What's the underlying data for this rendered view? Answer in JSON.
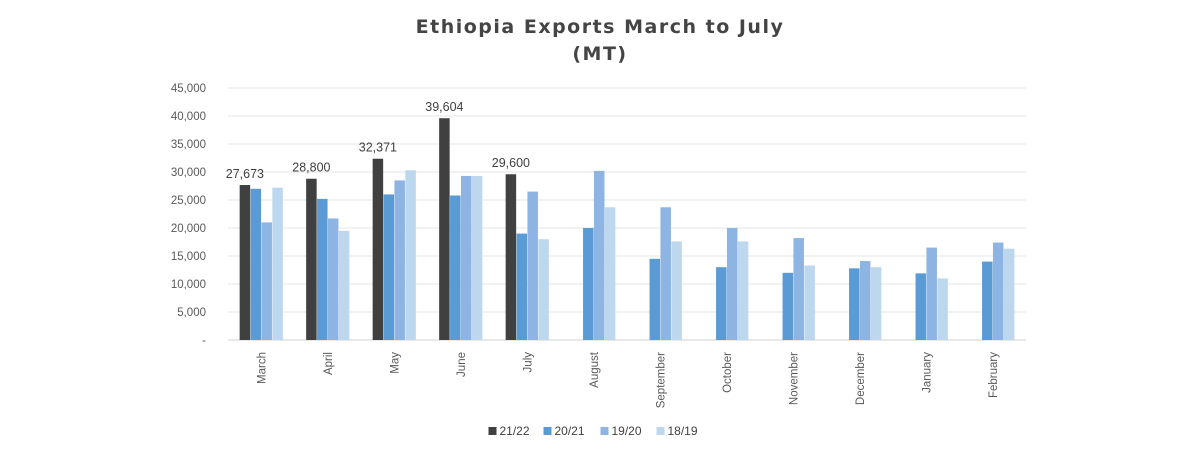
{
  "chart_data": {
    "type": "bar",
    "title": "Ethiopia Exports March to July",
    "subtitle": "(MT)",
    "xlabel": "",
    "ylabel": "",
    "ylim": [
      0,
      45000
    ],
    "yticks": [
      0,
      5000,
      10000,
      15000,
      20000,
      25000,
      30000,
      35000,
      40000,
      45000
    ],
    "ytick_labels": [
      "-",
      "5,000",
      "10,000",
      "15,000",
      "20,000",
      "25,000",
      "30,000",
      "35,000",
      "40,000",
      "45,000"
    ],
    "grid": true,
    "legend_position": "bottom",
    "categories": [
      "March",
      "April",
      "May",
      "June",
      "July",
      "August",
      "September",
      "October",
      "November",
      "December",
      "January",
      "February"
    ],
    "series": [
      {
        "name": "21/22",
        "color": "#404040",
        "values": [
          27673,
          28800,
          32371,
          39604,
          29600,
          null,
          null,
          null,
          null,
          null,
          null,
          null
        ],
        "labels": [
          "27,673",
          "28,800",
          "32,371",
          "39,604",
          "29,600",
          null,
          null,
          null,
          null,
          null,
          null,
          null
        ]
      },
      {
        "name": "20/21",
        "color": "#5b9bd5",
        "values": [
          27000,
          25200,
          26000,
          25800,
          19000,
          20000,
          14500,
          13000,
          12000,
          12800,
          11900,
          14000
        ]
      },
      {
        "name": "19/20",
        "color": "#8db4e2",
        "values": [
          21000,
          21700,
          28500,
          29300,
          26500,
          30200,
          23700,
          20000,
          18200,
          14100,
          16500,
          17400
        ]
      },
      {
        "name": "18/19",
        "color": "#bdd7ee",
        "values": [
          27200,
          19500,
          30300,
          29300,
          18000,
          23700,
          17600,
          17600,
          13300,
          13000,
          11000,
          16300
        ]
      }
    ]
  }
}
